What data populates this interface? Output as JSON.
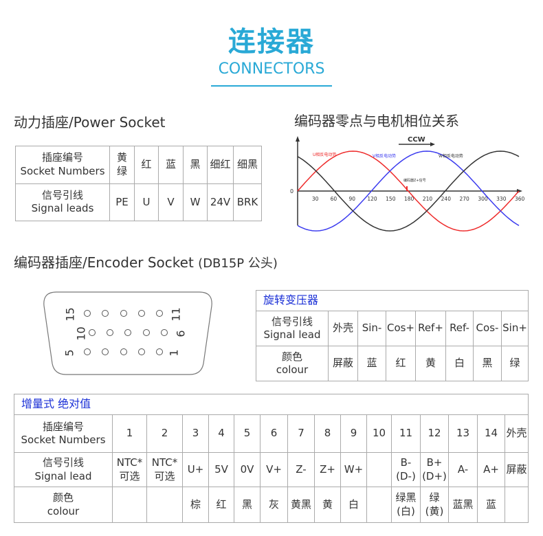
{
  "header": {
    "title_cn": "连接器",
    "title_en": "CONNECTORS"
  },
  "power": {
    "heading": "动力插座/Power Socket",
    "row1": [
      "插座编号\nSocket Numbers",
      "黄\n绿",
      "红",
      "蓝",
      "黑",
      "细红",
      "细黑"
    ],
    "row2": [
      "信号引线\nSignal leads",
      "PE",
      "U",
      "V",
      "W",
      "24V",
      "BRK"
    ]
  },
  "diagram": {
    "heading": "编码器零点与电机相位关系",
    "direction": "CCW",
    "zero": "0",
    "ticks": [
      "30",
      "60",
      "90",
      "120",
      "150",
      "180",
      "210",
      "240",
      "270",
      "300",
      "330",
      "360"
    ],
    "u_label": "U相反电动势",
    "v_label": "V相反电动势",
    "w_label": "W相反电动势",
    "z_label": "编码器Z+信号",
    "colors": {
      "u": "#ee2b2b",
      "v": "#3b3bef",
      "w": "#333333"
    }
  },
  "encoder": {
    "heading": "编码器插座/Encoder Socket",
    "heading_note": "(DB15P 公头)",
    "pin_labels": {
      "top_left": "15",
      "mid_left": "10",
      "bottom_left": "5",
      "top_right": "11",
      "mid_right": "6",
      "bottom_right": "1"
    }
  },
  "resolver": {
    "caption": "旋转变压器",
    "row1": [
      "信号引线\nSignal lead",
      "外壳",
      "Sin-",
      "Cos+",
      "Ref+",
      "Ref-",
      "Cos-",
      "Sin+"
    ],
    "row2": [
      "颜色\ncolour",
      "屏蔽",
      "蓝",
      "红",
      "黄",
      "白",
      "黑",
      "绿"
    ]
  },
  "incremental": {
    "caption": "增量式  绝对值",
    "row1": [
      "插座编号\nSocket Numbers",
      "1",
      "2",
      "3",
      "4",
      "5",
      "6",
      "7",
      "8",
      "9",
      "10",
      "11",
      "12",
      "13",
      "14",
      "外壳"
    ],
    "row2": [
      "信号引线\nSignal lead",
      "NTC*\n可选",
      "NTC*\n可选",
      "U+",
      "5V",
      "0V",
      "V+",
      "Z-",
      "Z+",
      "W+",
      "",
      "B-\n(D-)",
      "B+\n(D+)",
      "A-",
      "A+",
      "屏蔽"
    ],
    "row3": [
      "颜色\ncolour",
      "",
      "",
      "棕",
      "红",
      "黑",
      "灰",
      "黄黑",
      "黄",
      "白",
      "",
      "绿黑\n(白)",
      "绿\n(黄)",
      "蓝黑",
      "蓝",
      ""
    ]
  }
}
